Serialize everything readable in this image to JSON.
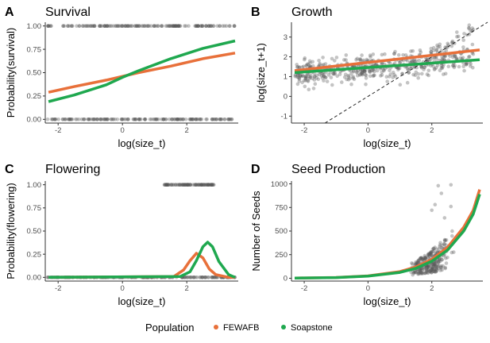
{
  "colors": {
    "FEWAFB": "#e8703a",
    "Soapstone": "#1fa84f",
    "points": "#555555",
    "axis": "#333333"
  },
  "legend": {
    "title": "Population",
    "items": [
      {
        "label": "FEWAFB",
        "color": "#e8703a"
      },
      {
        "label": "Soapstone",
        "color": "#1fa84f"
      }
    ]
  },
  "chart_data": [
    {
      "id": "A",
      "letter": "A",
      "title": "Survival",
      "type": "scatter",
      "xlabel": "log(size_t)",
      "ylabel": "Probability(survival)",
      "xlim": [
        -2.4,
        3.6
      ],
      "ylim": [
        -0.04,
        1.04
      ],
      "xticks": [
        -2,
        0,
        2
      ],
      "xtick_labels": [
        "-2",
        "0",
        "2"
      ],
      "yticks": [
        0,
        0.25,
        0.5,
        0.75,
        1
      ],
      "ytick_labels": [
        "0.00",
        "0.25",
        "0.50",
        "0.75",
        "1.00"
      ],
      "points_desc": "Binary outcomes 0 and 1 spanning log(size_t) about -2.4 to 3.5",
      "series": [
        {
          "name": "FEWAFB",
          "x": [
            -2.3,
            -1.5,
            -0.5,
            0,
            0.5,
            1.5,
            2.5,
            3.5
          ],
          "y": [
            0.29,
            0.35,
            0.42,
            0.46,
            0.5,
            0.57,
            0.65,
            0.71
          ]
        },
        {
          "name": "Soapstone",
          "x": [
            -2.3,
            -1.5,
            -0.5,
            0,
            0.5,
            1.5,
            2.5,
            3.5
          ],
          "y": [
            0.19,
            0.26,
            0.37,
            0.45,
            0.52,
            0.65,
            0.76,
            0.84
          ]
        }
      ]
    },
    {
      "id": "B",
      "letter": "B",
      "title": "Growth",
      "type": "scatter",
      "xlabel": "log(size_t)",
      "ylabel": "log(size_t+1)",
      "xlim": [
        -2.4,
        3.6
      ],
      "ylim": [
        -1.35,
        3.75
      ],
      "xticks": [
        -2,
        0,
        2
      ],
      "xtick_labels": [
        "-2",
        "0",
        "2"
      ],
      "yticks": [
        -1,
        0,
        1,
        2,
        3
      ],
      "ytick_labels": [
        "-1",
        "0",
        "1",
        "2",
        "3"
      ],
      "reference_line": "1:1 dashed line (y = x)",
      "series": [
        {
          "name": "FEWAFB",
          "x": [
            -2.3,
            3.5
          ],
          "y": [
            1.3,
            2.35
          ]
        },
        {
          "name": "Soapstone",
          "x": [
            -2.3,
            3.5
          ],
          "y": [
            1.2,
            1.85
          ]
        }
      ]
    },
    {
      "id": "C",
      "letter": "C",
      "title": "Flowering",
      "type": "scatter",
      "xlabel": "log(size_t)",
      "ylabel": "Probability(flowering)",
      "xlim": [
        -2.4,
        3.6
      ],
      "ylim": [
        -0.04,
        1.04
      ],
      "xticks": [
        -2,
        0,
        2
      ],
      "xtick_labels": [
        "-2",
        "0",
        "2"
      ],
      "yticks": [
        0,
        0.25,
        0.5,
        0.75,
        1
      ],
      "ytick_labels": [
        "0.00",
        "0.25",
        "0.50",
        "0.75",
        "1.00"
      ],
      "points_desc": "Flowering = 1 for log(size_t) about 1.3 to 2.9; 0 across -2.4 to 3.5",
      "series": [
        {
          "name": "FEWAFB",
          "x": [
            -2.3,
            1.6,
            1.9,
            2.1,
            2.3,
            2.5,
            2.7,
            2.9,
            3.3,
            3.5
          ],
          "y": [
            0,
            0.01,
            0.08,
            0.18,
            0.26,
            0.21,
            0.09,
            0.03,
            0.0,
            0.0
          ]
        },
        {
          "name": "Soapstone",
          "x": [
            -2.3,
            1.8,
            2.1,
            2.3,
            2.5,
            2.65,
            2.8,
            3.0,
            3.3,
            3.5
          ],
          "y": [
            0,
            0.01,
            0.06,
            0.18,
            0.33,
            0.38,
            0.33,
            0.17,
            0.03,
            0.0
          ]
        }
      ]
    },
    {
      "id": "D",
      "letter": "D",
      "title": "Seed Production",
      "type": "scatter",
      "xlabel": "log(size_t)",
      "ylabel": "Number of Seeds",
      "xlim": [
        -2.4,
        3.6
      ],
      "ylim": [
        -30,
        1030
      ],
      "xticks": [
        -2,
        0,
        2
      ],
      "xtick_labels": [
        "-2",
        "0",
        "2"
      ],
      "yticks": [
        0,
        250,
        500,
        750,
        1000
      ],
      "ytick_labels": [
        "0",
        "250",
        "500",
        "750",
        "1000"
      ],
      "points_desc": "Seed counts for log(size_t) about 1.2 to 3.2, mostly 0 to 500, a few up to about 990",
      "series": [
        {
          "name": "FEWAFB",
          "x": [
            -2.3,
            -1,
            0,
            1,
            1.5,
            2,
            2.5,
            3,
            3.3,
            3.5
          ],
          "y": [
            2,
            8,
            25,
            70,
            120,
            200,
            330,
            540,
            720,
            940
          ]
        },
        {
          "name": "Soapstone",
          "x": [
            -2.3,
            -1,
            0,
            1,
            1.5,
            2,
            2.5,
            3,
            3.3,
            3.5
          ],
          "y": [
            2,
            7,
            22,
            62,
            105,
            180,
            300,
            500,
            680,
            890
          ]
        }
      ]
    }
  ]
}
